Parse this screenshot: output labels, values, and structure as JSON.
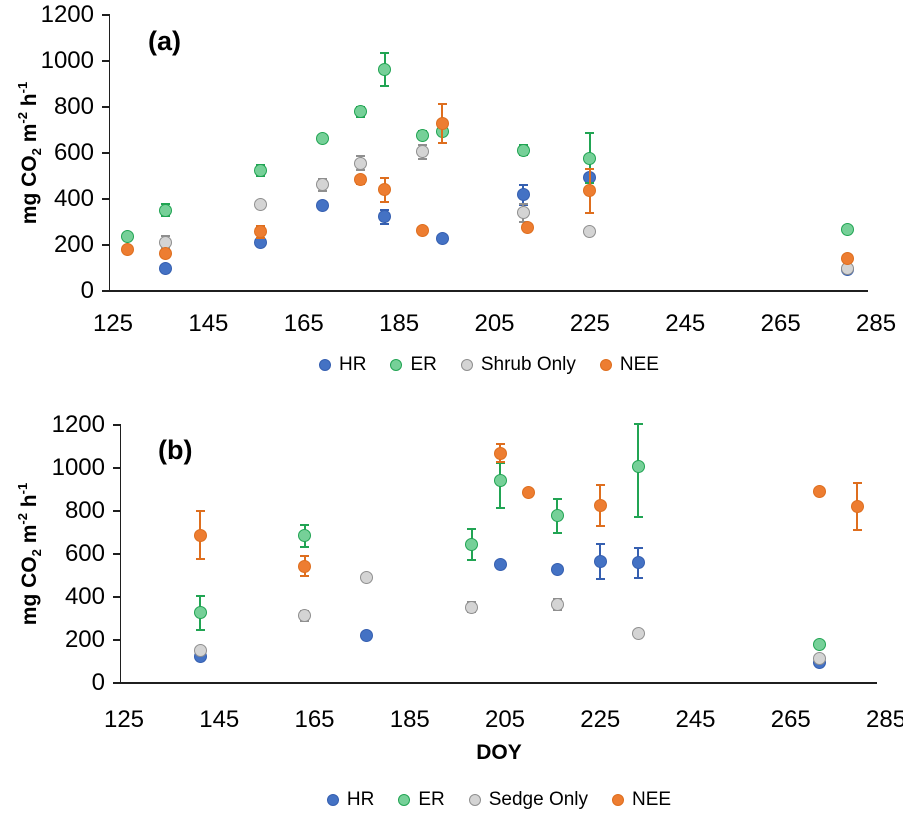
{
  "figure": {
    "background": "#ffffff",
    "axis_color": "#1f1f1f",
    "text_color": "#000000"
  },
  "chart_data": [
    {
      "type": "scatter",
      "panel_label": "(a)",
      "title": "",
      "xlabel": "",
      "ylabel": "mg CO2 m-2 h-1",
      "ylabel_parts": [
        {
          "t": "mg CO"
        },
        {
          "t": "2",
          "f": "sub"
        },
        {
          "t": " m"
        },
        {
          "t": "-2",
          "f": "sup"
        },
        {
          "t": " h"
        },
        {
          "t": "-1",
          "f": "sup"
        }
      ],
      "xlim": [
        125,
        285
      ],
      "ylim": [
        0,
        1200
      ],
      "xticks": [
        125,
        145,
        165,
        185,
        205,
        225,
        245,
        265,
        285
      ],
      "yticks": [
        0,
        200,
        400,
        600,
        800,
        1000,
        1200
      ],
      "grid": false,
      "legend_position": "bottom",
      "series": [
        {
          "name": "HR",
          "fill": "#4472C4",
          "edge": "#355FB0",
          "points": [
            [
              136,
              100
            ],
            [
              156,
              210
            ],
            [
              169,
              372
            ],
            [
              182,
              322,
              30
            ],
            [
              194,
              228
            ],
            [
              211,
              418,
              45
            ],
            [
              225,
              492,
              40
            ],
            [
              279,
              92
            ]
          ]
        },
        {
          "name": "ER",
          "fill": "#76D098",
          "edge": "#21A453",
          "points": [
            [
              128,
              237,
              14
            ],
            [
              136,
              352,
              26
            ],
            [
              156,
              523,
              24
            ],
            [
              169,
              664,
              16
            ],
            [
              177,
              779,
              22
            ],
            [
              182,
              962,
              72
            ],
            [
              190,
              678,
              16
            ],
            [
              194,
              692
            ],
            [
              211,
              613,
              22
            ],
            [
              225,
              578,
              108
            ],
            [
              279,
              268,
              16
            ]
          ]
        },
        {
          "name": "Shrub Only",
          "fill": "#D4D4D4",
          "edge": "#8F8F8F",
          "points": [
            [
              136,
              213,
              26
            ],
            [
              156,
              378,
              12
            ],
            [
              169,
              461,
              25
            ],
            [
              177,
              556,
              30
            ],
            [
              190,
              606,
              30
            ],
            [
              211,
              340,
              40
            ],
            [
              225,
              257
            ],
            [
              279,
              100
            ]
          ]
        },
        {
          "name": "NEE",
          "fill": "#ED7D31",
          "edge": "#DE6E1E",
          "points": [
            [
              128,
              182
            ],
            [
              136,
              161,
              12
            ],
            [
              156,
              257,
              26
            ],
            [
              177,
              483,
              16
            ],
            [
              182,
              440,
              52
            ],
            [
              190,
              262
            ],
            [
              194,
              730,
              85
            ],
            [
              212,
              278
            ],
            [
              225,
              435,
              95
            ],
            [
              279,
              140
            ]
          ]
        }
      ]
    },
    {
      "type": "scatter",
      "panel_label": "(b)",
      "title": "",
      "xlabel": "DOY",
      "ylabel": "mg CO2 m-2 h-1",
      "ylabel_parts": [
        {
          "t": "mg CO"
        },
        {
          "t": "2",
          "f": "sub"
        },
        {
          "t": " m"
        },
        {
          "t": "-2",
          "f": "sup"
        },
        {
          "t": " h"
        },
        {
          "t": "-1",
          "f": "sup"
        }
      ],
      "xlim": [
        125,
        285
      ],
      "ylim": [
        0,
        1200
      ],
      "xticks": [
        125,
        145,
        165,
        185,
        205,
        225,
        245,
        265,
        285
      ],
      "yticks": [
        0,
        200,
        400,
        600,
        800,
        1000,
        1200
      ],
      "grid": false,
      "legend_position": "bottom",
      "series": [
        {
          "name": "HR",
          "fill": "#4472C4",
          "edge": "#355FB0",
          "points": [
            [
              141,
              121
            ],
            [
              176,
              219
            ],
            [
              204,
              549
            ],
            [
              216,
              530
            ],
            [
              225,
              565,
              80
            ],
            [
              233,
              560,
              70
            ],
            [
              271,
              95
            ]
          ]
        },
        {
          "name": "ER",
          "fill": "#76D098",
          "edge": "#21A453",
          "points": [
            [
              141,
              326,
              80
            ],
            [
              163,
              684,
              50
            ],
            [
              198,
              643,
              72
            ],
            [
              204,
              940,
              [
                85,
                125
              ]
            ],
            [
              216,
              778,
              78
            ],
            [
              233,
              1005,
              [
                200,
                231
              ]
            ],
            [
              271,
              180
            ]
          ]
        },
        {
          "name": "Sedge Only",
          "fill": "#D4D4D4",
          "edge": "#8F8F8F",
          "points": [
            [
              141,
              153
            ],
            [
              163,
              312,
              25
            ],
            [
              176,
              493
            ],
            [
              198,
              353,
              25
            ],
            [
              216,
              366,
              25
            ],
            [
              233,
              232
            ],
            [
              271,
              116
            ]
          ]
        },
        {
          "name": "NEE",
          "fill": "#ED7D31",
          "edge": "#DE6E1E",
          "points": [
            [
              141,
              688,
              110
            ],
            [
              163,
              544,
              48
            ],
            [
              204,
              1068,
              42
            ],
            [
              210,
              885
            ],
            [
              225,
              825,
              97
            ],
            [
              271,
              893
            ],
            [
              279,
              820,
              110
            ]
          ]
        }
      ]
    }
  ]
}
